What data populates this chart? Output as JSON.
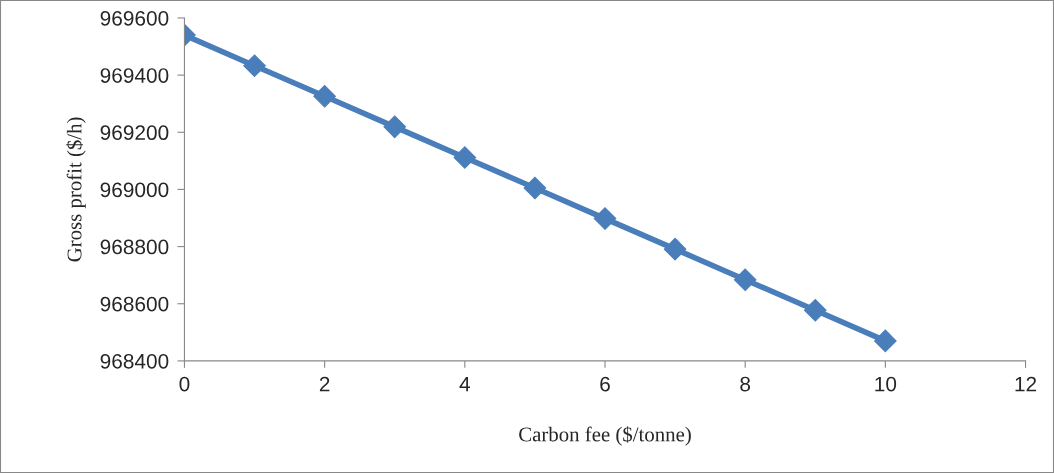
{
  "chart_data": {
    "type": "line",
    "xlabel": "Carbon fee ($/tonne)",
    "ylabel": "Gross profit ($/h)",
    "x": [
      0,
      1,
      2,
      3,
      4,
      5,
      6,
      7,
      8,
      9,
      10
    ],
    "series": [
      {
        "color": "#4a7ebb",
        "values": [
          969540,
          969433,
          969326,
          969219,
          969112,
          969005,
          968898,
          968791,
          968684,
          968577,
          968470
        ]
      }
    ],
    "xlim": [
      0,
      12
    ],
    "xticks": [
      0,
      2,
      4,
      6,
      8,
      10,
      12
    ],
    "ylim": [
      968400,
      969600
    ],
    "yticks": [
      968400,
      968600,
      968800,
      969000,
      969200,
      969400,
      969600
    ],
    "marker": "diamond",
    "line_style": "solid"
  }
}
